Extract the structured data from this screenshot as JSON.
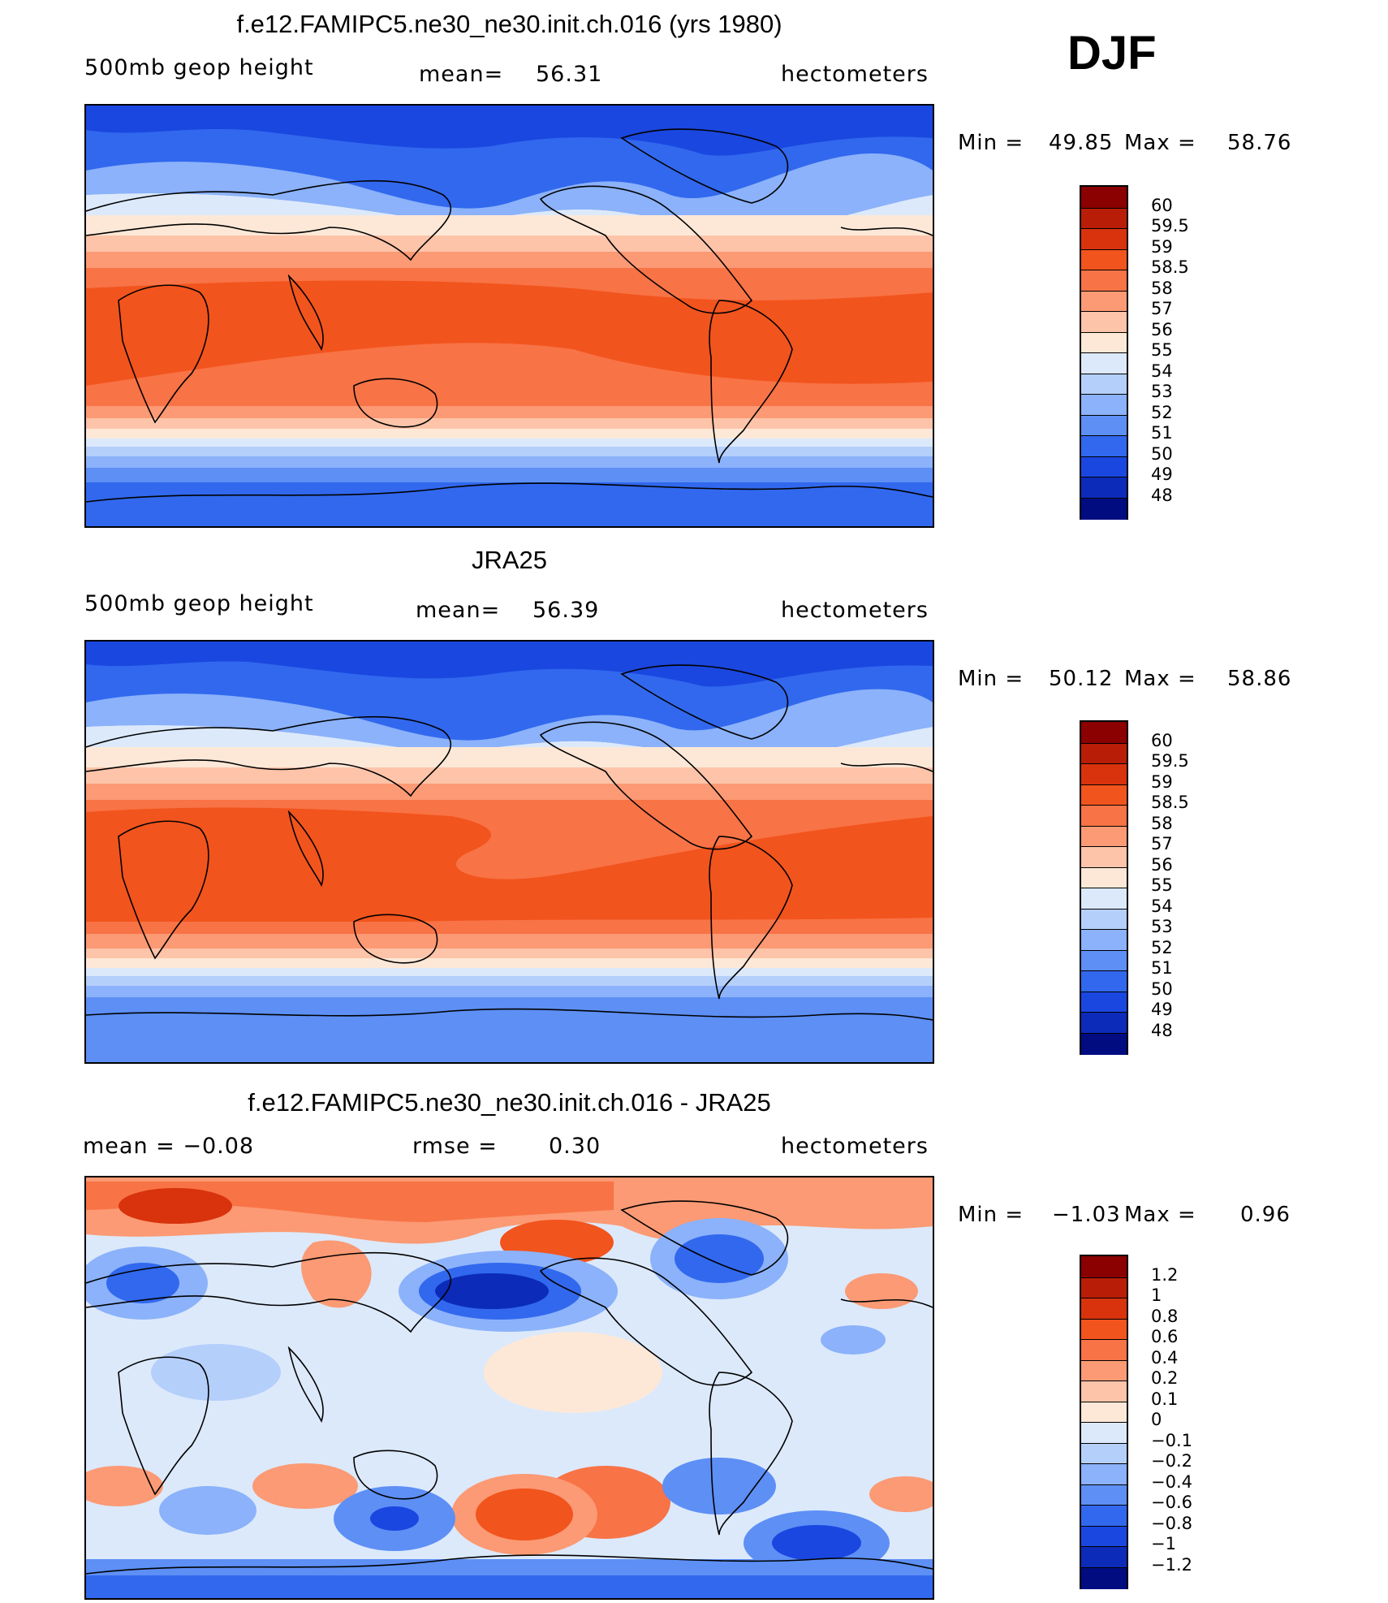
{
  "season": "DJF",
  "units": "hectometers",
  "panels": [
    {
      "id": "model",
      "title": "f.e12.FAMIPC5.ne30_ne30.init.ch.016 (yrs 1980)",
      "left_label": "500mb  geop  height",
      "stat_label": "mean=",
      "stat_value": "56.31",
      "units": "hectometers",
      "min_label": "Min  =",
      "min_value": "49.85",
      "max_label": "Max  =",
      "max_value": "58.76",
      "colorbar": {
        "levels": [
          "60",
          "59.5",
          "59",
          "58.5",
          "58",
          "57",
          "56",
          "55",
          "54",
          "53",
          "52",
          "51",
          "50",
          "49",
          "48"
        ],
        "colors": [
          "#8b0000",
          "#b81d07",
          "#d8330d",
          "#f2541d",
          "#f87346",
          "#fb9a74",
          "#fdc4a9",
          "#fde8d7",
          "#dce9fb",
          "#b5cffb",
          "#8bb2fa",
          "#5d8ff5",
          "#3168ee",
          "#1a47e0",
          "#0b2bb8",
          "#000c80"
        ]
      }
    },
    {
      "id": "obs",
      "title": "JRA25",
      "left_label": "500mb  geop  height",
      "stat_label": "mean=",
      "stat_value": "56.39",
      "units": "hectometers",
      "min_label": "Min  =",
      "min_value": "50.12",
      "max_label": "Max  =",
      "max_value": "58.86",
      "colorbar": {
        "levels": [
          "60",
          "59.5",
          "59",
          "58.5",
          "58",
          "57",
          "56",
          "55",
          "54",
          "53",
          "52",
          "51",
          "50",
          "49",
          "48"
        ],
        "colors": [
          "#8b0000",
          "#b81d07",
          "#d8330d",
          "#f2541d",
          "#f87346",
          "#fb9a74",
          "#fdc4a9",
          "#fde8d7",
          "#dce9fb",
          "#b5cffb",
          "#8bb2fa",
          "#5d8ff5",
          "#3168ee",
          "#1a47e0",
          "#0b2bb8",
          "#000c80"
        ]
      }
    },
    {
      "id": "diff",
      "title": "f.e12.FAMIPC5.ne30_ne30.init.ch.016 - JRA25",
      "left_label": "mean  =     −0.08",
      "stat_label": "rmse  =",
      "stat_value": "0.30",
      "units": "hectometers",
      "min_label": "Min  =",
      "min_value": "−1.03",
      "max_label": "Max  =",
      "max_value": "0.96",
      "colorbar": {
        "levels": [
          "1.2",
          "1",
          "0.8",
          "0.6",
          "0.4",
          "0.2",
          "0.1",
          "0",
          "−0.1",
          "−0.2",
          "−0.4",
          "−0.6",
          "−0.8",
          "−1",
          "−1.2"
        ],
        "colors": [
          "#8b0000",
          "#b81d07",
          "#d8330d",
          "#f2541d",
          "#f87346",
          "#fb9a74",
          "#fdc4a9",
          "#fde8d7",
          "#dce9fb",
          "#b5cffb",
          "#8bb2fa",
          "#5d8ff5",
          "#3168ee",
          "#1a47e0",
          "#0b2bb8",
          "#000c80"
        ]
      }
    }
  ]
}
